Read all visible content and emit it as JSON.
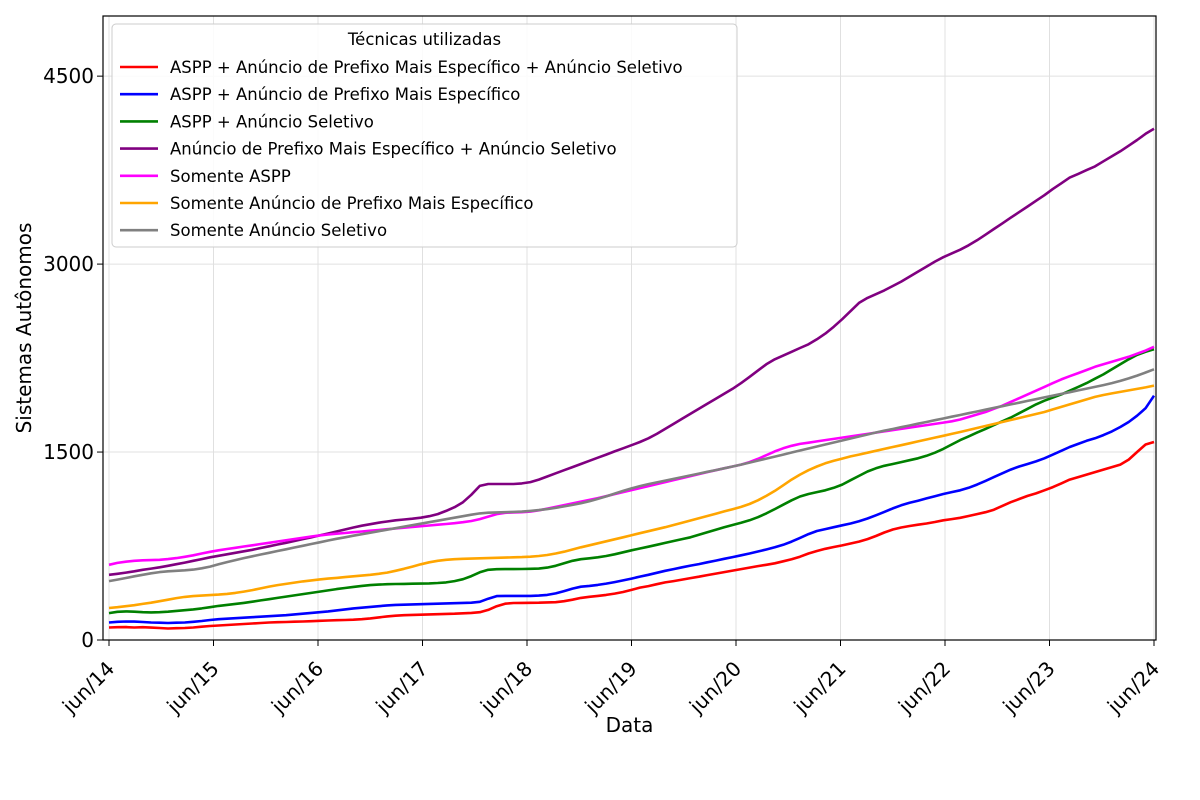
{
  "chart_data": {
    "type": "line",
    "xlabel": "Data",
    "ylabel": "Sistemas Autônomos",
    "legend_title": "Técnicas utilizadas",
    "legend_position": "top-left",
    "grid": true,
    "x_start": "jun/14",
    "x_end": "jun/24",
    "x_ticks": [
      "jun/14",
      "jun/15",
      "jun/16",
      "jun/17",
      "jun/18",
      "jun/19",
      "jun/20",
      "jun/21",
      "jun/22",
      "jun/23",
      "jun/24"
    ],
    "y_ticks": [
      0,
      1500,
      3000,
      4500
    ],
    "ylim": [
      0,
      4980
    ],
    "x_sampling": "monthly from jun/14 to jun/24",
    "series": [
      {
        "name": "ASPP + Anúncio de Prefixo Mais Específico + Anúncio Seletivo",
        "color": "#ff0000",
        "values": [
          100,
          102,
          103,
          100,
          102,
          99,
          96,
          92,
          94,
          96,
          100,
          106,
          112,
          116,
          120,
          124,
          128,
          132,
          136,
          140,
          142,
          144,
          146,
          148,
          150,
          153,
          156,
          158,
          160,
          162,
          166,
          172,
          180,
          188,
          194,
          198,
          200,
          202,
          204,
          206,
          208,
          210,
          213,
          216,
          222,
          240,
          270,
          290,
          295,
          296,
          297,
          298,
          300,
          302,
          310,
          322,
          336,
          345,
          352,
          360,
          370,
          383,
          400,
          418,
          430,
          445,
          460,
          470,
          482,
          494,
          505,
          518,
          530,
          542,
          554,
          566,
          578,
          590,
          600,
          612,
          628,
          645,
          665,
          690,
          710,
          728,
          742,
          755,
          770,
          785,
          805,
          830,
          858,
          882,
          898,
          910,
          920,
          930,
          942,
          955,
          965,
          975,
          990,
          1005,
          1020,
          1040,
          1070,
          1100,
          1125,
          1150,
          1170,
          1195,
          1220,
          1250,
          1280,
          1300,
          1320,
          1340,
          1360,
          1380,
          1400,
          1440,
          1500,
          1560,
          1580
        ]
      },
      {
        "name": "ASPP + Anúncio de Prefixo Mais Específico",
        "color": "#0000ff",
        "values": [
          140,
          145,
          148,
          147,
          144,
          140,
          138,
          136,
          138,
          140,
          145,
          152,
          160,
          166,
          170,
          174,
          178,
          182,
          186,
          190,
          194,
          198,
          204,
          210,
          216,
          222,
          228,
          236,
          244,
          252,
          258,
          264,
          270,
          276,
          280,
          282,
          284,
          286,
          288,
          290,
          292,
          294,
          296,
          298,
          305,
          330,
          350,
          352,
          352,
          352,
          352,
          354,
          360,
          372,
          390,
          410,
          425,
          432,
          440,
          450,
          462,
          476,
          490,
          506,
          520,
          536,
          552,
          566,
          580,
          594,
          606,
          620,
          634,
          648,
          662,
          676,
          690,
          706,
          722,
          740,
          760,
          785,
          815,
          845,
          870,
          885,
          900,
          915,
          930,
          948,
          970,
          995,
          1022,
          1050,
          1075,
          1095,
          1112,
          1130,
          1148,
          1165,
          1180,
          1195,
          1215,
          1240,
          1270,
          1300,
          1330,
          1360,
          1385,
          1405,
          1425,
          1450,
          1480,
          1510,
          1540,
          1565,
          1590,
          1610,
          1635,
          1665,
          1700,
          1740,
          1790,
          1850,
          1950
        ]
      },
      {
        "name": "ASPP + Anúncio Seletivo",
        "color": "#008000",
        "values": [
          215,
          225,
          228,
          226,
          222,
          220,
          222,
          226,
          232,
          238,
          244,
          252,
          262,
          272,
          280,
          288,
          296,
          306,
          316,
          326,
          336,
          346,
          356,
          366,
          376,
          386,
          396,
          406,
          415,
          424,
          432,
          438,
          442,
          445,
          447,
          448,
          449,
          450,
          452,
          455,
          460,
          470,
          485,
          510,
          540,
          560,
          565,
          566,
          566,
          567,
          568,
          570,
          578,
          592,
          612,
          632,
          645,
          652,
          660,
          670,
          684,
          700,
          716,
          730,
          745,
          760,
          775,
          790,
          805,
          820,
          840,
          860,
          880,
          900,
          918,
          935,
          955,
          980,
          1010,
          1045,
          1080,
          1115,
          1145,
          1165,
          1180,
          1195,
          1215,
          1240,
          1275,
          1310,
          1345,
          1370,
          1390,
          1405,
          1420,
          1435,
          1450,
          1470,
          1495,
          1525,
          1560,
          1595,
          1625,
          1655,
          1685,
          1715,
          1745,
          1775,
          1810,
          1845,
          1880,
          1910,
          1935,
          1960,
          1990,
          2020,
          2050,
          2085,
          2120,
          2160,
          2200,
          2240,
          2275,
          2300,
          2320
        ]
      },
      {
        "name": "Anúncio de Prefixo Mais Específico + Anúncio Seletivo",
        "color": "#800080",
        "values": [
          520,
          528,
          538,
          548,
          560,
          570,
          580,
          592,
          605,
          618,
          632,
          646,
          660,
          672,
          684,
          696,
          708,
          720,
          734,
          748,
          762,
          776,
          790,
          805,
          820,
          835,
          850,
          866,
          882,
          898,
          912,
          924,
          936,
          946,
          955,
          962,
          968,
          976,
          988,
          1005,
          1030,
          1060,
          1100,
          1160,
          1230,
          1245,
          1245,
          1245,
          1245,
          1250,
          1260,
          1280,
          1305,
          1330,
          1355,
          1380,
          1405,
          1430,
          1455,
          1480,
          1505,
          1530,
          1555,
          1580,
          1610,
          1645,
          1685,
          1725,
          1765,
          1805,
          1845,
          1885,
          1925,
          1965,
          2005,
          2050,
          2100,
          2150,
          2200,
          2240,
          2270,
          2300,
          2330,
          2360,
          2400,
          2445,
          2500,
          2560,
          2625,
          2690,
          2730,
          2760,
          2790,
          2825,
          2860,
          2900,
          2940,
          2980,
          3020,
          3055,
          3085,
          3115,
          3150,
          3190,
          3235,
          3280,
          3325,
          3370,
          3415,
          3460,
          3505,
          3550,
          3600,
          3645,
          3690,
          3720,
          3750,
          3780,
          3820,
          3860,
          3900,
          3945,
          3990,
          4040,
          4080
        ]
      },
      {
        "name": "Somente ASPP",
        "color": "#ff00ff",
        "values": [
          600,
          615,
          625,
          632,
          636,
          638,
          640,
          646,
          654,
          664,
          676,
          690,
          704,
          716,
          726,
          736,
          746,
          756,
          766,
          776,
          786,
          796,
          806,
          816,
          826,
          835,
          842,
          848,
          854,
          860,
          866,
          872,
          878,
          884,
          890,
          896,
          902,
          908,
          914,
          920,
          926,
          932,
          940,
          950,
          965,
          985,
          1005,
          1015,
          1018,
          1020,
          1025,
          1035,
          1048,
          1062,
          1076,
          1090,
          1104,
          1118,
          1132,
          1148,
          1164,
          1180,
          1196,
          1212,
          1228,
          1244,
          1260,
          1276,
          1292,
          1308,
          1324,
          1340,
          1355,
          1370,
          1385,
          1400,
          1420,
          1445,
          1475,
          1505,
          1530,
          1550,
          1565,
          1575,
          1585,
          1595,
          1605,
          1615,
          1625,
          1635,
          1645,
          1655,
          1665,
          1675,
          1685,
          1695,
          1705,
          1715,
          1725,
          1735,
          1745,
          1760,
          1780,
          1800,
          1820,
          1845,
          1870,
          1900,
          1930,
          1960,
          1990,
          2020,
          2050,
          2080,
          2105,
          2130,
          2155,
          2180,
          2200,
          2220,
          2240,
          2260,
          2285,
          2310,
          2340
        ]
      },
      {
        "name": "Somente Anúncio de Prefixo Mais Específico",
        "color": "#ffa500",
        "values": [
          255,
          262,
          270,
          278,
          288,
          298,
          310,
          322,
          334,
          344,
          350,
          354,
          358,
          362,
          368,
          376,
          386,
          398,
          412,
          426,
          438,
          448,
          458,
          468,
          476,
          484,
          490,
          496,
          502,
          508,
          514,
          520,
          528,
          538,
          552,
          568,
          586,
          604,
          620,
          632,
          640,
          645,
          648,
          650,
          652,
          654,
          656,
          658,
          660,
          662,
          665,
          670,
          678,
          690,
          705,
          722,
          740,
          756,
          772,
          788,
          804,
          820,
          836,
          852,
          868,
          884,
          900,
          918,
          936,
          954,
          972,
          990,
          1008,
          1026,
          1044,
          1062,
          1085,
          1115,
          1150,
          1190,
          1235,
          1280,
          1320,
          1355,
          1385,
          1410,
          1430,
          1448,
          1465,
          1480,
          1495,
          1510,
          1525,
          1540,
          1555,
          1570,
          1585,
          1600,
          1615,
          1630,
          1645,
          1660,
          1676,
          1692,
          1708,
          1724,
          1740,
          1756,
          1772,
          1788,
          1804,
          1820,
          1840,
          1860,
          1880,
          1900,
          1920,
          1940,
          1955,
          1968,
          1980,
          1992,
          2004,
          2016,
          2030
        ]
      },
      {
        "name": "Somente Anúncio Seletivo",
        "color": "#808080",
        "values": [
          470,
          482,
          495,
          508,
          520,
          532,
          542,
          548,
          552,
          556,
          562,
          572,
          586,
          604,
          622,
          638,
          654,
          668,
          682,
          696,
          710,
          724,
          738,
          752,
          766,
          780,
          794,
          808,
          820,
          832,
          844,
          856,
          868,
          880,
          892,
          904,
          916,
          928,
          940,
          952,
          964,
          976,
          988,
          1000,
          1010,
          1016,
          1018,
          1020,
          1022,
          1025,
          1030,
          1037,
          1045,
          1055,
          1066,
          1078,
          1092,
          1108,
          1126,
          1146,
          1168,
          1190,
          1210,
          1228,
          1244,
          1258,
          1272,
          1286,
          1300,
          1314,
          1328,
          1342,
          1356,
          1370,
          1385,
          1400,
          1416,
          1432,
          1448,
          1464,
          1480,
          1496,
          1512,
          1528,
          1544,
          1560,
          1576,
          1592,
          1608,
          1624,
          1640,
          1656,
          1670,
          1684,
          1698,
          1712,
          1726,
          1740,
          1754,
          1768,
          1782,
          1796,
          1810,
          1824,
          1838,
          1852,
          1866,
          1880,
          1894,
          1908,
          1922,
          1936,
          1950,
          1964,
          1978,
          1992,
          2006,
          2020,
          2034,
          2050,
          2068,
          2088,
          2110,
          2135,
          2160
        ]
      }
    ]
  }
}
